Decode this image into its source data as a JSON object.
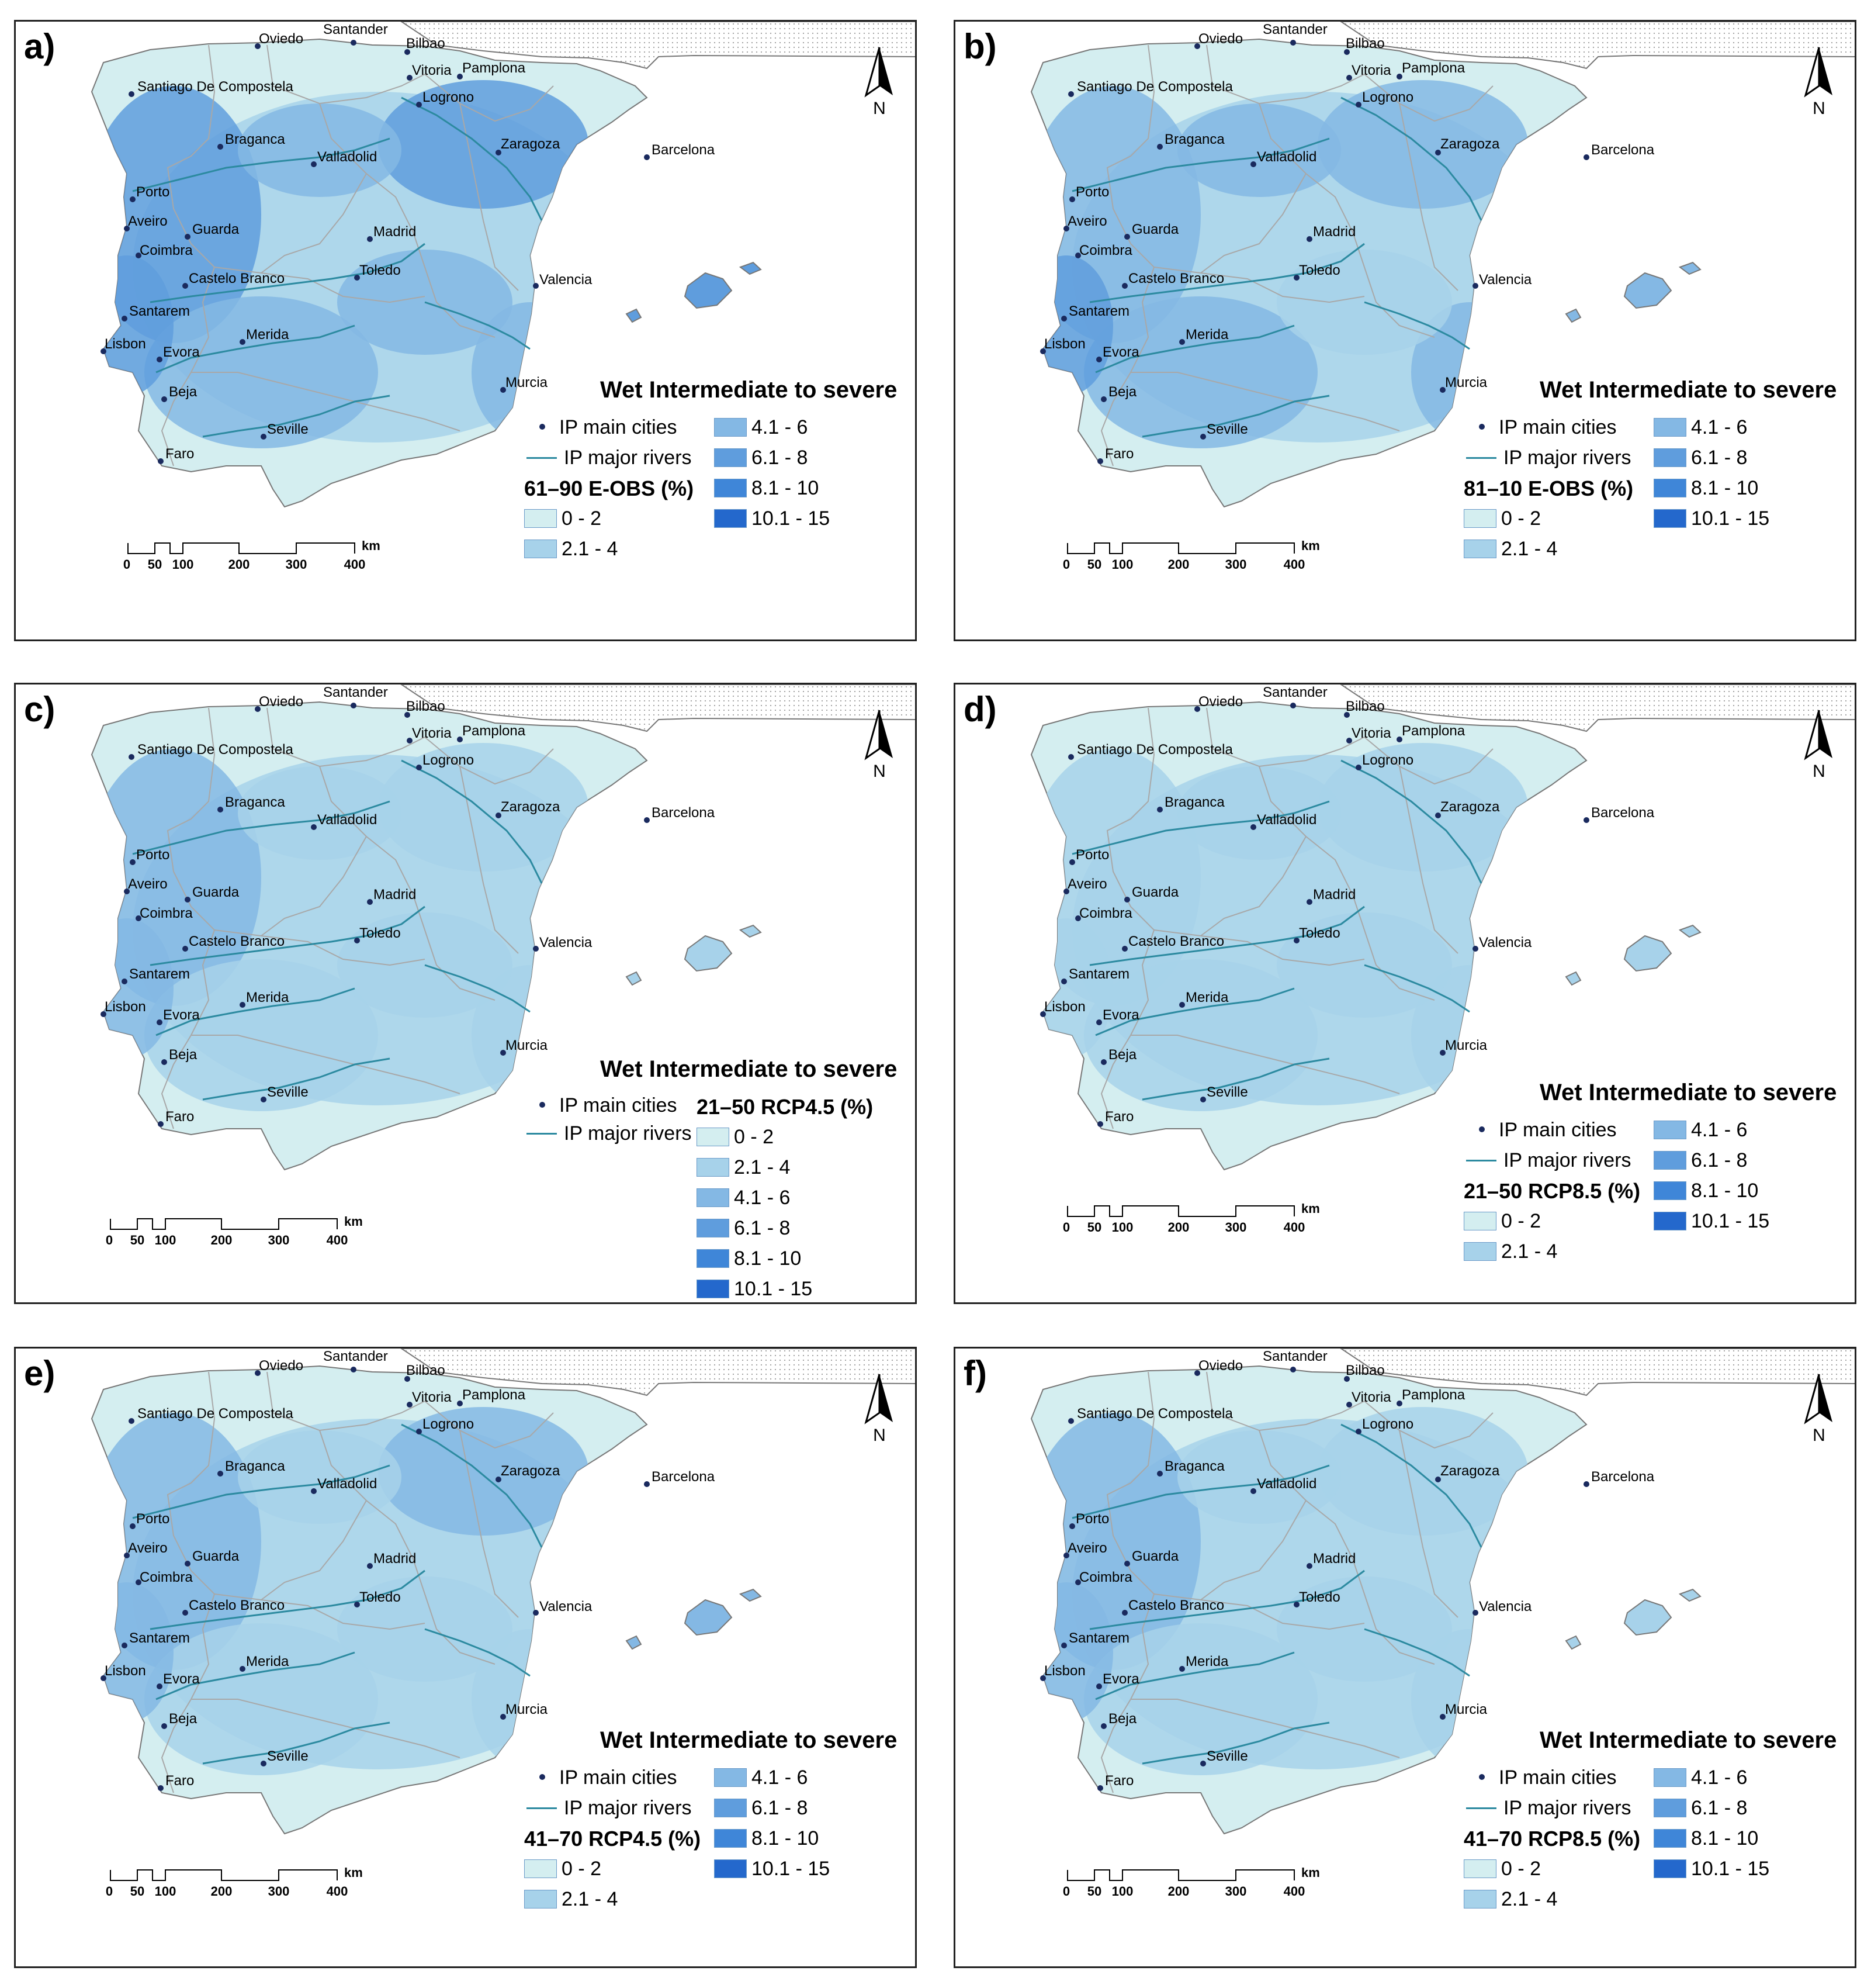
{
  "figure_title": "Wet Intermediate to severe",
  "panels": [
    {
      "label": "a)",
      "period": "61–90 E-OBS (%)",
      "style": "legend_two_col",
      "tone": 2.6
    },
    {
      "label": "b)",
      "period": "81–10 E-OBS (%)",
      "style": "legend_two_col",
      "tone": 2.1
    },
    {
      "label": "c)",
      "period": "21–50 RCP4.5 (%)",
      "style": "legend_one_col",
      "tone": 1.4
    },
    {
      "label": "d)",
      "period": "21–50 RCP8.5 (%)",
      "style": "legend_two_col",
      "tone": 1.1
    },
    {
      "label": "e)",
      "period": "41–70 RCP4.5 (%)",
      "style": "legend_two_col",
      "tone": 1.6
    },
    {
      "label": "f)",
      "period": "41–70 RCP8.5 (%)",
      "style": "legend_two_col",
      "tone": 1.4
    }
  ],
  "legend": {
    "cities_label": "IP main cities",
    "rivers_label": "IP major rivers",
    "classes": [
      {
        "label": "0 - 2",
        "color": "#d4eef0"
      },
      {
        "label": "2.1 - 4",
        "color": "#a7d2ea"
      },
      {
        "label": "4.1 - 6",
        "color": "#84b8e4"
      },
      {
        "label": "6.1 - 8",
        "color": "#5f9ddd"
      },
      {
        "label": "8.1 - 10",
        "color": "#3f86d8"
      },
      {
        "label": "10.1 - 15",
        "color": "#2468cc"
      }
    ]
  },
  "north_arrow": "N",
  "scale": {
    "ticks": [
      "0",
      "50",
      "100",
      "200",
      "300",
      "400"
    ],
    "unit": "km"
  },
  "cities": [
    {
      "name": "Oviedo"
    },
    {
      "name": "Santander"
    },
    {
      "name": "Bilbao"
    },
    {
      "name": "Vitoria"
    },
    {
      "name": "Pamplona"
    },
    {
      "name": "Santiago De Compostela"
    },
    {
      "name": "Logrono"
    },
    {
      "name": "Zaragoza"
    },
    {
      "name": "Barcelona"
    },
    {
      "name": "Braganca"
    },
    {
      "name": "Valladolid"
    },
    {
      "name": "Porto"
    },
    {
      "name": "Aveiro"
    },
    {
      "name": "Guarda"
    },
    {
      "name": "Madrid"
    },
    {
      "name": "Coimbra"
    },
    {
      "name": "Castelo Branco"
    },
    {
      "name": "Toledo"
    },
    {
      "name": "Valencia"
    },
    {
      "name": "Santarem"
    },
    {
      "name": "Merida"
    },
    {
      "name": "Lisbon"
    },
    {
      "name": "Evora"
    },
    {
      "name": "Murcia"
    },
    {
      "name": "Beja"
    },
    {
      "name": "Seville"
    },
    {
      "name": "Faro"
    }
  ]
}
